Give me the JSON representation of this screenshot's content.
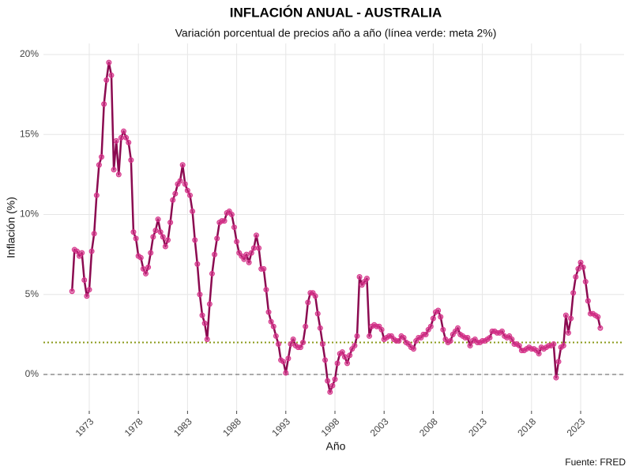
{
  "chart_data": {
    "type": "line",
    "title": "INFLACIÓN ANUAL - AUSTRALIA",
    "subtitle": "Variación porcentual de precios año a año (línea verde: meta 2%)",
    "x_label": "Año",
    "y_label": "Inflación (%)",
    "caption": "Fuente: FRED",
    "line_color": "#8b0a50",
    "point_color": "#d6338a",
    "x": [
      1971.25,
      1971.5,
      1971.75,
      1972,
      1972.25,
      1972.5,
      1972.75,
      1973,
      1973.25,
      1973.5,
      1973.75,
      1974,
      1974.25,
      1974.5,
      1974.75,
      1975,
      1975.25,
      1975.5,
      1975.75,
      1976,
      1976.25,
      1976.5,
      1976.75,
      1977,
      1977.25,
      1977.5,
      1977.75,
      1978,
      1978.25,
      1978.5,
      1978.75,
      1979,
      1979.25,
      1979.5,
      1979.75,
      1980,
      1980.25,
      1980.5,
      1980.75,
      1981,
      1981.25,
      1981.5,
      1981.75,
      1982,
      1982.25,
      1982.5,
      1982.75,
      1983,
      1983.25,
      1983.5,
      1983.75,
      1984,
      1984.25,
      1984.5,
      1984.75,
      1985,
      1985.25,
      1985.5,
      1985.75,
      1986,
      1986.25,
      1986.5,
      1986.75,
      1987,
      1987.25,
      1987.5,
      1987.75,
      1988,
      1988.25,
      1988.5,
      1988.75,
      1989,
      1989.25,
      1989.5,
      1989.75,
      1990,
      1990.25,
      1990.5,
      1990.75,
      1991,
      1991.25,
      1991.5,
      1991.75,
      1992,
      1992.25,
      1992.5,
      1992.75,
      1993,
      1993.25,
      1993.5,
      1993.75,
      1994,
      1994.25,
      1994.5,
      1994.75,
      1995,
      1995.25,
      1995.5,
      1995.75,
      1996,
      1996.25,
      1996.5,
      1996.75,
      1997,
      1997.25,
      1997.5,
      1997.75,
      1998,
      1998.25,
      1998.5,
      1998.75,
      1999,
      1999.25,
      1999.5,
      1999.75,
      2000,
      2000.25,
      2000.5,
      2000.75,
      2001,
      2001.25,
      2001.5,
      2001.75,
      2002,
      2002.25,
      2002.5,
      2002.75,
      2003,
      2003.25,
      2003.5,
      2003.75,
      2004,
      2004.25,
      2004.5,
      2004.75,
      2005,
      2005.25,
      2005.5,
      2005.75,
      2006,
      2006.25,
      2006.5,
      2006.75,
      2007,
      2007.25,
      2007.5,
      2007.75,
      2008,
      2008.25,
      2008.5,
      2008.75,
      2009,
      2009.25,
      2009.5,
      2009.75,
      2010,
      2010.25,
      2010.5,
      2010.75,
      2011,
      2011.25,
      2011.5,
      2011.75,
      2012,
      2012.25,
      2012.5,
      2012.75,
      2013,
      2013.25,
      2013.5,
      2013.75,
      2014,
      2014.25,
      2014.5,
      2014.75,
      2015,
      2015.25,
      2015.5,
      2015.75,
      2016,
      2016.25,
      2016.5,
      2016.75,
      2017,
      2017.25,
      2017.5,
      2017.75,
      2018,
      2018.25,
      2018.5,
      2018.75,
      2019,
      2019.25,
      2019.5,
      2019.75,
      2020,
      2020.25,
      2020.5,
      2020.75,
      2021,
      2021.25,
      2021.5,
      2021.75,
      2022,
      2022.25,
      2022.5,
      2022.75,
      2023,
      2023.25,
      2023.5,
      2023.75,
      2024,
      2024.25,
      2024.5,
      2024.75,
      2025
    ],
    "values": [
      5.2,
      7.8,
      7.7,
      7.4,
      7.6,
      5.9,
      4.9,
      5.3,
      7.7,
      8.8,
      11.2,
      13.1,
      13.6,
      16.9,
      18.4,
      19.5,
      18.7,
      12.8,
      14.6,
      12.5,
      14.8,
      15.2,
      14.8,
      14.5,
      13.4,
      8.9,
      8.5,
      7.4,
      7.3,
      6.6,
      6.3,
      6.7,
      7.6,
      8.6,
      9.0,
      9.7,
      8.9,
      8.6,
      8.0,
      8.4,
      9.5,
      10.9,
      11.3,
      11.9,
      12.1,
      13.1,
      11.9,
      11.5,
      11.2,
      10.2,
      8.4,
      6.9,
      5.0,
      3.7,
      3.2,
      2.2,
      4.4,
      6.3,
      7.5,
      8.5,
      9.5,
      9.6,
      9.6,
      10.1,
      10.2,
      10.0,
      9.2,
      8.3,
      7.6,
      7.4,
      7.2,
      7.5,
      7.0,
      7.6,
      7.9,
      8.7,
      7.9,
      6.6,
      6.6,
      5.3,
      3.9,
      3.3,
      3.0,
      2.4,
      1.9,
      0.9,
      0.8,
      0.1,
      1.0,
      1.9,
      2.2,
      1.8,
      1.7,
      1.7,
      2.0,
      3.0,
      4.5,
      5.1,
      5.1,
      4.9,
      3.8,
      2.9,
      1.9,
      0.9,
      -0.4,
      -1.1,
      -0.7,
      -0.3,
      0.7,
      1.3,
      1.4,
      1.1,
      0.7,
      1.2,
      1.6,
      1.8,
      2.4,
      6.1,
      5.6,
      5.8,
      6.0,
      2.4,
      3.0,
      3.1,
      3.0,
      3.0,
      2.8,
      2.2,
      2.3,
      2.4,
      2.4,
      2.2,
      2.1,
      2.1,
      2.4,
      2.3,
      2.0,
      1.9,
      1.7,
      1.6,
      2.1,
      2.3,
      2.3,
      2.5,
      2.5,
      2.8,
      3.0,
      3.5,
      3.9,
      4.0,
      3.6,
      2.8,
      2.2,
      2.0,
      2.1,
      2.5,
      2.7,
      2.9,
      2.5,
      2.4,
      2.3,
      2.3,
      1.8,
      2.1,
      2.2,
      2.0,
      2.0,
      2.1,
      2.1,
      2.2,
      2.3,
      2.7,
      2.7,
      2.6,
      2.6,
      2.7,
      2.4,
      2.3,
      2.4,
      2.2,
      1.9,
      1.9,
      1.8,
      1.5,
      1.5,
      1.6,
      1.7,
      1.6,
      1.6,
      1.5,
      1.3,
      1.7,
      1.6,
      1.7,
      1.8,
      1.8,
      1.9,
      -0.2,
      0.8,
      1.7,
      1.8,
      3.7,
      2.6,
      3.5,
      5.1,
      6.1,
      6.6,
      7.0,
      6.7,
      5.8,
      4.6,
      3.8,
      3.8,
      3.7,
      3.6,
      2.9
    ],
    "reference_lines": [
      {
        "value": 0,
        "color": "#555555",
        "style": "dashed"
      },
      {
        "value": 2,
        "color": "#8a9a1a",
        "style": "dotted"
      }
    ],
    "xlim": [
      1968.34,
      2027.42
    ],
    "xticks": [
      1973,
      1978,
      1983,
      1988,
      1993,
      1998,
      2003,
      2008,
      2013,
      2018,
      2023
    ],
    "ylim": [
      -2.27,
      20.69
    ],
    "yticks": [
      {
        "value": 0,
        "label": "0%"
      },
      {
        "value": 5,
        "label": "5%"
      },
      {
        "value": 10,
        "label": "10%"
      },
      {
        "value": 15,
        "label": "15%"
      },
      {
        "value": 20,
        "label": "20%"
      }
    ],
    "grid": true
  }
}
